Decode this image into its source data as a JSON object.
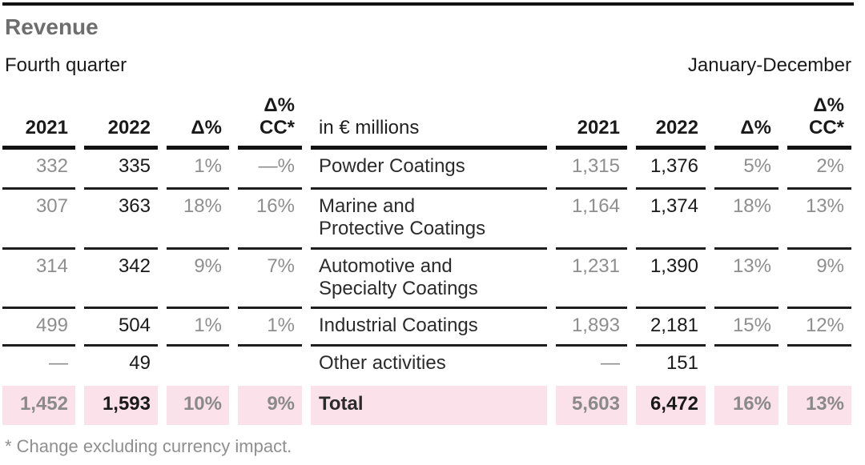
{
  "page": {
    "title": "Revenue",
    "left_period": "Fourth quarter",
    "right_period": "January-December",
    "footnote": "* Change excluding currency impact."
  },
  "header": {
    "q4_2021": "2021",
    "q4_2022": "2022",
    "q4_delta": "Δ%",
    "q4_cc_line1": "Δ%",
    "q4_cc_line2": "CC*",
    "unit_label": "in € millions",
    "fy_2021": "2021",
    "fy_2022": "2022",
    "fy_delta": "Δ%",
    "fy_cc_line1": "Δ%",
    "fy_cc_line2": "CC*"
  },
  "rows": [
    {
      "name_line1": "Powder Coatings",
      "name_line2": "",
      "q4_2021": "332",
      "q4_2022": "335",
      "q4_delta": "1%",
      "q4_cc": "—%",
      "fy_2021": "1,315",
      "fy_2022": "1,376",
      "fy_delta": "5%",
      "fy_cc": "2%"
    },
    {
      "name_line1": "Marine and",
      "name_line2": "Protective Coatings",
      "q4_2021": "307",
      "q4_2022": "363",
      "q4_delta": "18%",
      "q4_cc": "16%",
      "fy_2021": "1,164",
      "fy_2022": "1,374",
      "fy_delta": "18%",
      "fy_cc": "13%"
    },
    {
      "name_line1": "Automotive and",
      "name_line2": "Specialty Coatings",
      "q4_2021": "314",
      "q4_2022": "342",
      "q4_delta": "9%",
      "q4_cc": "7%",
      "fy_2021": "1,231",
      "fy_2022": "1,390",
      "fy_delta": "13%",
      "fy_cc": "9%"
    },
    {
      "name_line1": "Industrial Coatings",
      "name_line2": "",
      "q4_2021": "499",
      "q4_2022": "504",
      "q4_delta": "1%",
      "q4_cc": "1%",
      "fy_2021": "1,893",
      "fy_2022": "2,181",
      "fy_delta": "15%",
      "fy_cc": "12%"
    },
    {
      "name_line1": "Other activities",
      "name_line2": "",
      "q4_2021": "—",
      "q4_2022": "49",
      "q4_delta": "",
      "q4_cc": "",
      "fy_2021": "—",
      "fy_2022": "151",
      "fy_delta": "",
      "fy_cc": ""
    }
  ],
  "total": {
    "label": "Total",
    "q4_2021": "1,452",
    "q4_2022": "1,593",
    "q4_delta": "10%",
    "q4_cc": "9%",
    "fy_2021": "5,603",
    "fy_2022": "6,472",
    "fy_delta": "16%",
    "fy_cc": "13%"
  },
  "colors": {
    "accent_pink": "#fbe2ea",
    "muted_gray": "#8e8e8e",
    "title_gray": "#6e6e6e",
    "rule_black": "#121212"
  }
}
